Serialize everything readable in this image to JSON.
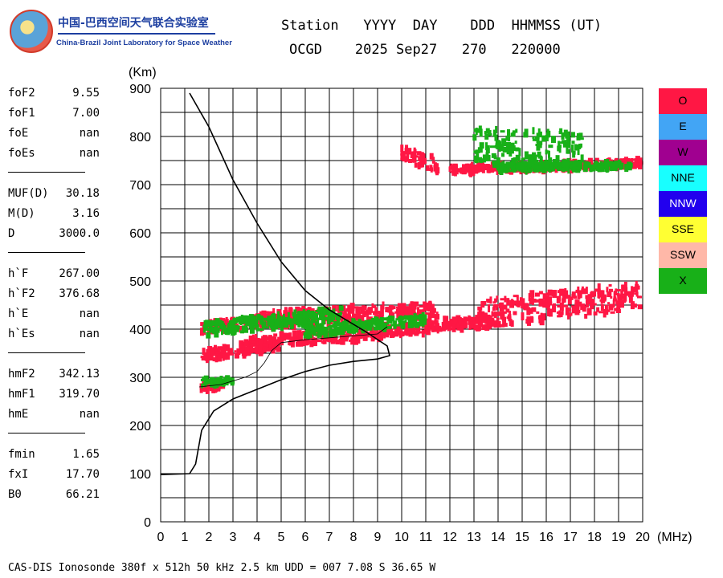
{
  "logo": {
    "cn": "中国-巴西空间天气联合实验室",
    "en": "China-Brazil Joint Laboratory for Space Weather"
  },
  "header": {
    "line1": "Station   YYYY  DAY    DDD  HHMMSS (UT)",
    "line2": "OCGD    2025 Sep27   270   220000"
  },
  "params": [
    {
      "name": "foF2",
      "value": "9.55"
    },
    {
      "name": "foF1",
      "value": "7.00"
    },
    {
      "name": "foE",
      "value": "nan"
    },
    {
      "name": "foEs",
      "value": "nan"
    },
    {
      "sep": true
    },
    {
      "name": "MUF(D)",
      "value": "30.18"
    },
    {
      "name": "M(D)",
      "value": "3.16"
    },
    {
      "name": "D",
      "value": "3000.0"
    },
    {
      "sep": true
    },
    {
      "name": "h`F",
      "value": "267.00"
    },
    {
      "name": "h`F2",
      "value": "376.68"
    },
    {
      "name": "h`E",
      "value": "nan"
    },
    {
      "name": "h`Es",
      "value": "nan"
    },
    {
      "sep": true
    },
    {
      "name": "hmF2",
      "value": "342.13"
    },
    {
      "name": "hmF1",
      "value": "319.70"
    },
    {
      "name": "hmE",
      "value": "nan"
    },
    {
      "sep": true
    },
    {
      "name": "fmin",
      "value": "1.65"
    },
    {
      "name": "fxI",
      "value": "17.70"
    },
    {
      "name": "B0",
      "value": "66.21"
    }
  ],
  "legend": [
    {
      "label": "O",
      "color": "#ff1744"
    },
    {
      "label": "E",
      "color": "#42a5f5"
    },
    {
      "label": "W",
      "color": "#a00090"
    },
    {
      "label": "NNE",
      "color": "#18ffff"
    },
    {
      "label": "NNW",
      "color": "#2200ee"
    },
    {
      "label": "SSE",
      "color": "#ffff33"
    },
    {
      "label": "SSW",
      "color": "#ffb8a8"
    },
    {
      "label": "X",
      "color": "#18b018"
    }
  ],
  "footer": "CAS-DIS Ionosonde 380f x 512h 50 kHz 2.5 km UDD = 007 7.08 S 36.65 W",
  "chart_data": {
    "type": "scatter",
    "title": "",
    "xlabel": "(MHz)",
    "ylabel": "(Km)",
    "xlim": [
      0,
      20
    ],
    "ylim": [
      0,
      900
    ],
    "x_ticks": [
      0,
      1,
      2,
      3,
      4,
      5,
      6,
      7,
      8,
      9,
      10,
      11,
      12,
      13,
      14,
      15,
      16,
      17,
      18,
      19,
      20
    ],
    "y_ticks": [
      0,
      100,
      200,
      300,
      400,
      500,
      600,
      700,
      800,
      900
    ],
    "grid": true,
    "series": [
      {
        "name": "O",
        "color": "#ff1744",
        "kind": "echo_bands",
        "bands": [
          {
            "x": [
              1.6,
              2.6
            ],
            "y": [
              280,
              280
            ],
            "spread": 10
          },
          {
            "x": [
              1.7,
              5.0
            ],
            "y": [
              345,
              370
            ],
            "spread": 12
          },
          {
            "x": [
              3.5,
              9.5
            ],
            "y": [
              370,
              395
            ],
            "spread": 14
          },
          {
            "x": [
              1.7,
              6.5
            ],
            "y": [
              405,
              420
            ],
            "spread": 12
          },
          {
            "x": [
              4.0,
              11.5
            ],
            "y": [
              420,
              440
            ],
            "spread": 16
          },
          {
            "x": [
              9.5,
              14.0
            ],
            "y": [
              395,
              420
            ],
            "spread": 12
          },
          {
            "x": [
              13.0,
              20.0
            ],
            "y": [
              430,
              470
            ],
            "spread": 30
          },
          {
            "x": [
              10.0,
              11.5
            ],
            "y": [
              765,
              740
            ],
            "spread": 15
          },
          {
            "x": [
              12.0,
              20.0
            ],
            "y": [
              730,
              745
            ],
            "spread": 8
          }
        ]
      },
      {
        "name": "X",
        "color": "#18b018",
        "kind": "echo_bands",
        "bands": [
          {
            "x": [
              1.7,
              3.0
            ],
            "y": [
              290,
              292
            ],
            "spread": 8
          },
          {
            "x": [
              1.8,
              7.5
            ],
            "y": [
              400,
              430
            ],
            "spread": 14
          },
          {
            "x": [
              6.0,
              11.0
            ],
            "y": [
              395,
              420
            ],
            "spread": 10
          },
          {
            "x": [
              13.0,
              17.5
            ],
            "y": [
              780,
              770
            ],
            "spread": 40
          },
          {
            "x": [
              14.0,
              19.5
            ],
            "y": [
              735,
              740
            ],
            "spread": 8
          }
        ]
      }
    ],
    "profile": {
      "name": "electron density profile",
      "points": [
        [
          0.0,
          98
        ],
        [
          1.2,
          100
        ],
        [
          1.45,
          120
        ],
        [
          1.7,
          190
        ],
        [
          2.2,
          230
        ],
        [
          3.0,
          255
        ],
        [
          4.0,
          275
        ],
        [
          5.0,
          295
        ],
        [
          6.0,
          312
        ],
        [
          7.0,
          325
        ],
        [
          8.0,
          333
        ],
        [
          9.0,
          338
        ],
        [
          9.5,
          345
        ],
        [
          9.4,
          365
        ],
        [
          8.5,
          395
        ],
        [
          7.0,
          440
        ],
        [
          6.0,
          480
        ],
        [
          5.0,
          540
        ],
        [
          4.0,
          620
        ],
        [
          3.0,
          710
        ],
        [
          2.0,
          820
        ],
        [
          1.2,
          890
        ]
      ]
    },
    "virtual_trace": {
      "name": "O trace",
      "points": [
        [
          1.6,
          280
        ],
        [
          2.5,
          285
        ],
        [
          3.5,
          300
        ],
        [
          4.0,
          312
        ],
        [
          4.3,
          330
        ],
        [
          4.6,
          355
        ],
        [
          5.0,
          372
        ],
        [
          6.0,
          378
        ],
        [
          7.0,
          382
        ],
        [
          8.0,
          386
        ],
        [
          9.0,
          390
        ],
        [
          9.4,
          405
        ]
      ]
    }
  }
}
